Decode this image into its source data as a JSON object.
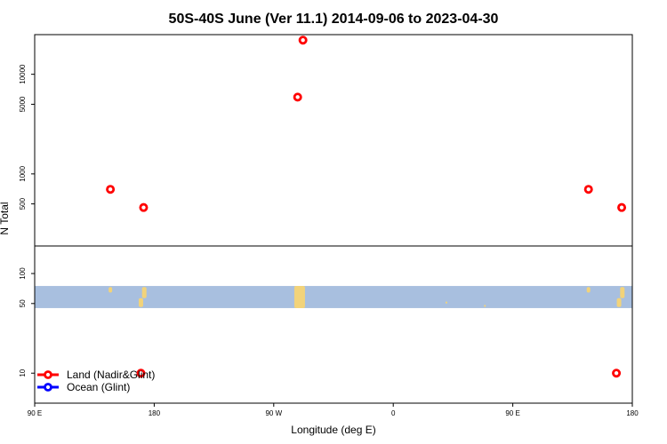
{
  "chart_data": {
    "type": "scatter",
    "title": "50S-40S June (Ver 11.1)   2014-09-06 to 2023-04-30",
    "xlabel": "Longitude (deg E)",
    "ylabel": "N Total",
    "x_axis": {
      "start_lon": 90,
      "span": 360,
      "ticks": [
        {
          "offset": 0,
          "label": "90 E"
        },
        {
          "offset": 90,
          "label": "180"
        },
        {
          "offset": 180,
          "label": "90 W"
        },
        {
          "offset": 270,
          "label": "0"
        },
        {
          "offset": 360,
          "label": "90 E"
        },
        {
          "offset": 450,
          "label": "180"
        }
      ],
      "range_offset": [
        0,
        450
      ]
    },
    "y_axis": {
      "scale": "log",
      "ylim": [
        5,
        25000
      ],
      "ticks": [
        10,
        50,
        100,
        500,
        1000,
        5000,
        10000
      ]
    },
    "land_band": {
      "ymin": 45,
      "ymax": 75,
      "color": "#a8bfdf",
      "land_color": "#f2d37a"
    },
    "series": [
      {
        "name": "Land (Nadir&Glint)",
        "color": "#ff0000",
        "points": [
          {
            "lon_offset": 57,
            "y": 700
          },
          {
            "lon_offset": 82,
            "y": 460
          },
          {
            "lon_offset": 80,
            "y": 10
          },
          {
            "lon_offset": 198,
            "y": 5900
          },
          {
            "lon_offset": 202,
            "y": 22000
          },
          {
            "lon_offset": 417,
            "y": 700
          },
          {
            "lon_offset": 442,
            "y": 460
          },
          {
            "lon_offset": 438,
            "y": 10
          }
        ]
      },
      {
        "name": "Ocean (Glint)",
        "color": "#0000ff",
        "points": []
      }
    ],
    "legend": {
      "placement": "bottom-left"
    },
    "grid": false
  }
}
